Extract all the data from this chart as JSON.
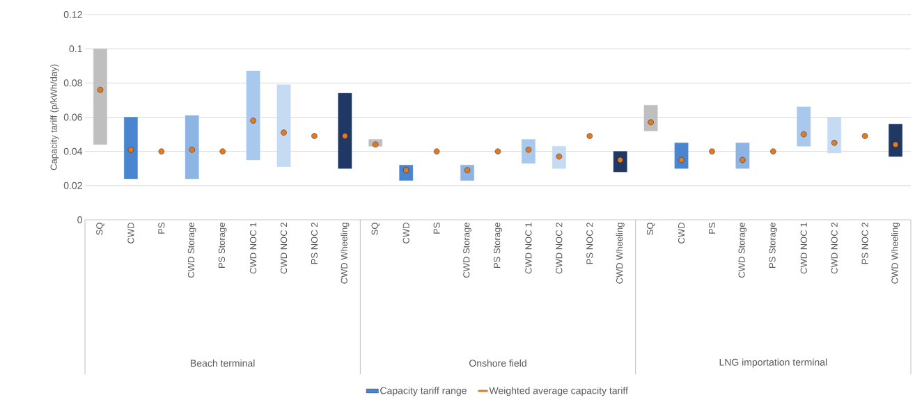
{
  "chart_data": {
    "type": "bar",
    "ylabel": "Capacity tariff (p/kWh/day)",
    "categories": [
      "SQ",
      "CWD",
      "PS",
      "CWD Storage",
      "PS Storage",
      "CWD NOC 1",
      "CWD NOC 2",
      "PS NOC 2",
      "CWD Wheeling",
      "SQ",
      "CWD",
      "PS",
      "CWD Storage",
      "PS Storage",
      "CWD NOC 1",
      "CWD NOC 2",
      "PS NOC 2",
      "CWD Wheeling",
      "SQ",
      "CWD",
      "PS",
      "CWD Storage",
      "PS Storage",
      "CWD NOC 1",
      "CWD NOC 2",
      "PS NOC 2",
      "CWD Wheeling"
    ],
    "series": [
      {
        "name": "Capacity tariff range",
        "type": "bar",
        "color": "#4a86d0",
        "colors": [
          "#bfbfbf",
          "#4a86d0",
          null,
          "#8db4e2",
          null,
          "#a9c8ee",
          "#c5daf3",
          null,
          "#1f3864",
          "#bfbfbf",
          "#4a86d0",
          null,
          "#8db4e2",
          null,
          "#a9c8ee",
          "#c5daf3",
          null,
          "#1f3864",
          "#bfbfbf",
          "#4a86d0",
          null,
          "#8db4e2",
          null,
          "#a9c8ee",
          "#c5daf3",
          null,
          "#1f3864"
        ],
        "base": [
          0.044,
          0.024,
          null,
          0.024,
          null,
          0.035,
          0.031,
          null,
          0.03,
          0.043,
          0.023,
          null,
          0.023,
          null,
          0.033,
          0.03,
          null,
          0.028,
          0.052,
          0.03,
          null,
          0.03,
          null,
          0.043,
          0.039,
          null,
          0.037
        ],
        "values": [
          0.056,
          0.036,
          null,
          0.037,
          null,
          0.052,
          0.048,
          null,
          0.044,
          0.004,
          0.009,
          null,
          0.009,
          null,
          0.014,
          0.013,
          null,
          0.012,
          0.015,
          0.015,
          null,
          0.015,
          null,
          0.023,
          0.021,
          null,
          0.019
        ]
      },
      {
        "name": "Weighted average capacity tariff",
        "type": "scatter",
        "color": "#e07b25",
        "values": [
          0.076,
          0.041,
          0.04,
          0.041,
          0.04,
          0.058,
          0.051,
          0.049,
          0.049,
          0.044,
          0.029,
          0.04,
          0.029,
          0.04,
          0.041,
          0.037,
          0.049,
          0.035,
          0.057,
          0.035,
          0.04,
          0.035,
          0.04,
          0.05,
          0.045,
          0.049,
          0.044
        ]
      }
    ],
    "ylim": [
      0,
      0.12
    ],
    "yticks": [
      0,
      0.02,
      0.04,
      0.06,
      0.08,
      0.1,
      0.12
    ],
    "grid": "y",
    "legend": "bottom",
    "annotations": [
      "Beach terminal",
      "Onshore field",
      "LNG importation terminal"
    ]
  }
}
